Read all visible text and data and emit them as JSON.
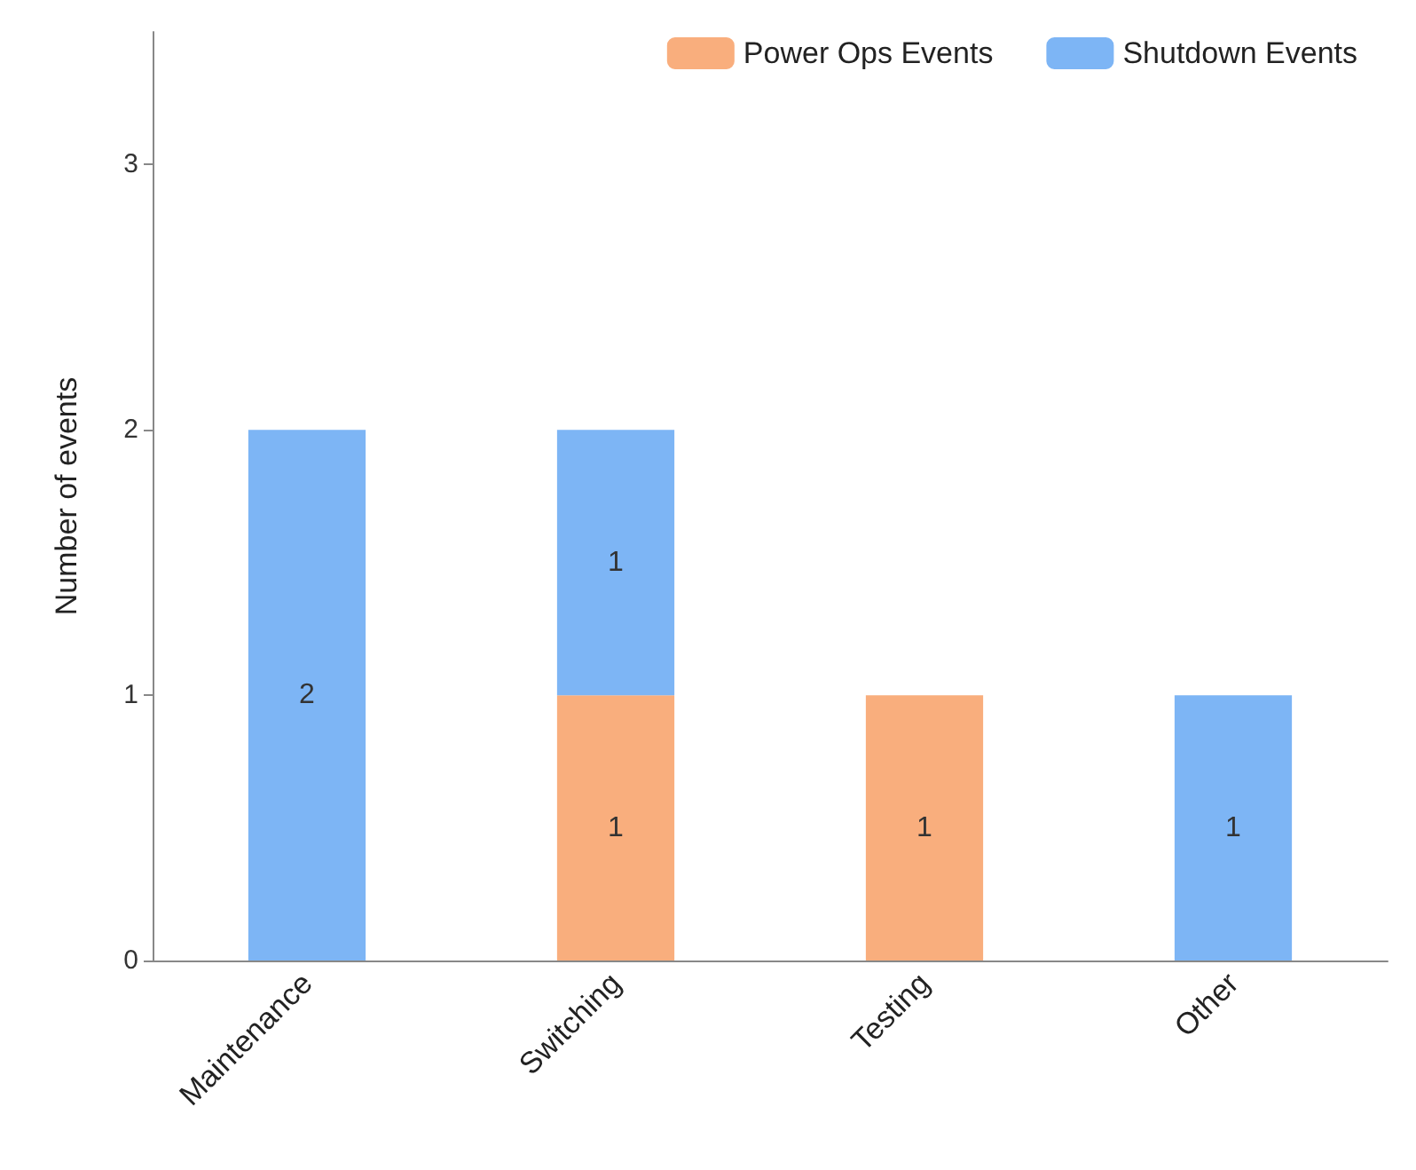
{
  "chart_data": {
    "type": "bar",
    "ylabel": "Number of events",
    "categories": [
      "Maintenance",
      "Switching",
      "Testing",
      "Other"
    ],
    "stacked": true,
    "data_labels": true,
    "legend": "top right",
    "grid": false,
    "ylim": [
      0,
      3.5
    ],
    "yticks": [
      0,
      1,
      2,
      3
    ],
    "series": [
      {
        "name": "Power Ops Events",
        "color": "#f9ae7d",
        "values": [
          null,
          1,
          1,
          null
        ]
      },
      {
        "name": "Shutdown Events",
        "color": "#7db5f5",
        "values": [
          2,
          1,
          null,
          1
        ]
      }
    ]
  }
}
